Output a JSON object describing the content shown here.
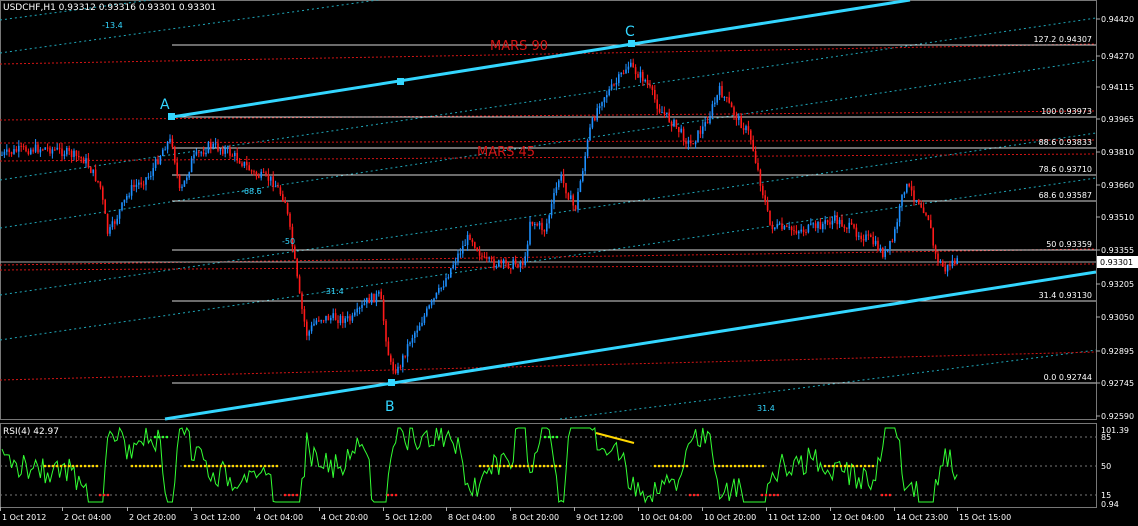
{
  "header": {
    "symbol_info": "USDCHF,H1  0.93312 0.93316 0.93301 0.93301"
  },
  "main_price_axis": {
    "labels": [
      "0.94420",
      "0.94270",
      "0.94115",
      "0.93965",
      "0.93810",
      "0.93660",
      "0.93510",
      "0.93355",
      "0.93205",
      "0.93050",
      "0.92895",
      "0.92745",
      "0.92590"
    ],
    "current_price": "0.93301"
  },
  "fibonacci_levels": [
    {
      "label": "127.2 0.94307"
    },
    {
      "label": "100 0.93973"
    },
    {
      "label": "88.6 0.93833"
    },
    {
      "label": "78.6 0.93710"
    },
    {
      "label": "68.6 0.93587"
    },
    {
      "label": "50 0.93359"
    },
    {
      "label": "31.4 0.93130"
    },
    {
      "label": "0.0 0.92744"
    }
  ],
  "mars_labels": [
    "MARS 90",
    "MARS 45"
  ],
  "pivot_points": [
    "A",
    "B",
    "C"
  ],
  "fan_labels": [
    "-13.4",
    "-68.6",
    "-50",
    "-31.4",
    "31.4"
  ],
  "rsi": {
    "title": "RSI(4) 42.97",
    "axis_labels": [
      "101.39",
      "85",
      "50",
      "15",
      "0.94"
    ]
  },
  "time_axis": {
    "labels": [
      "1 Oct 2012",
      "2 Oct 04:00",
      "2 Oct 20:00",
      "3 Oct 12:00",
      "4 Oct 04:00",
      "4 Oct 20:00",
      "5 Oct 12:00",
      "8 Oct 04:00",
      "8 Oct 20:00",
      "9 Oct 12:00",
      "10 Oct 04:00",
      "10 Oct 20:00",
      "11 Oct 12:00",
      "12 Oct 04:00",
      "14 Oct 23:00",
      "15 Oct 15:00"
    ]
  },
  "colors": {
    "bull_candle": "#1e90ff",
    "bear_candle": "#ff1a1a",
    "channel_line": "#33d6ff",
    "mars_line": "#d21414",
    "fib_line": "#ffffff",
    "rsi_line": "#33ff33",
    "rsi_dots": "#ffd700"
  }
}
